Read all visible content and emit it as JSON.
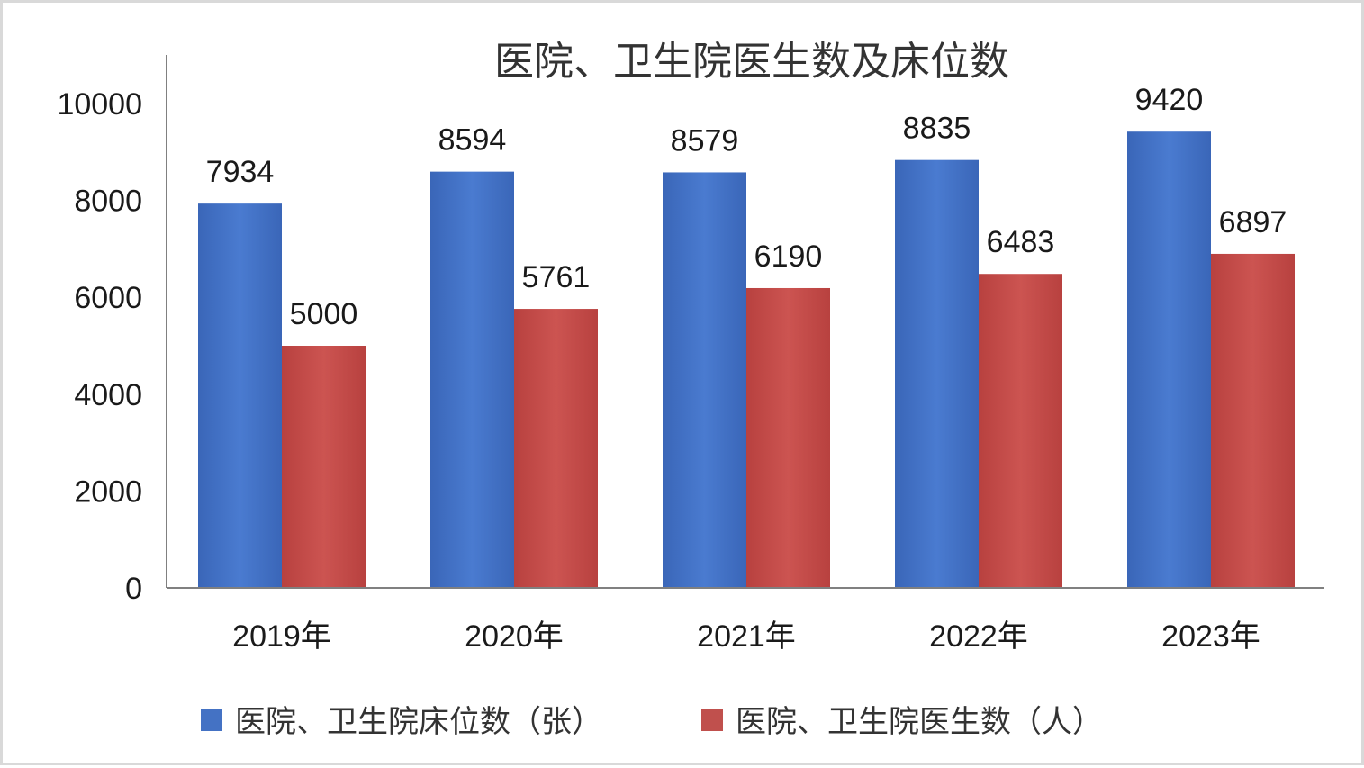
{
  "chart_data": {
    "type": "bar",
    "title": "医院、卫生院医生数及床位数",
    "categories": [
      "2019年",
      "2020年",
      "2021年",
      "2022年",
      "2023年"
    ],
    "series": [
      {
        "name": "医院、卫生院床位数（张）",
        "color": "#4472c4",
        "values": [
          7934,
          8594,
          8579,
          8835,
          9420
        ]
      },
      {
        "name": "医院、卫生院医生数（人）",
        "color": "#c0504d",
        "values": [
          5000,
          5761,
          6190,
          6483,
          6897
        ]
      }
    ],
    "yticks": [
      0,
      2000,
      4000,
      6000,
      8000,
      10000
    ],
    "ylim": [
      0,
      10000
    ],
    "grid": false,
    "legend": "bottom",
    "data_labels": true
  }
}
